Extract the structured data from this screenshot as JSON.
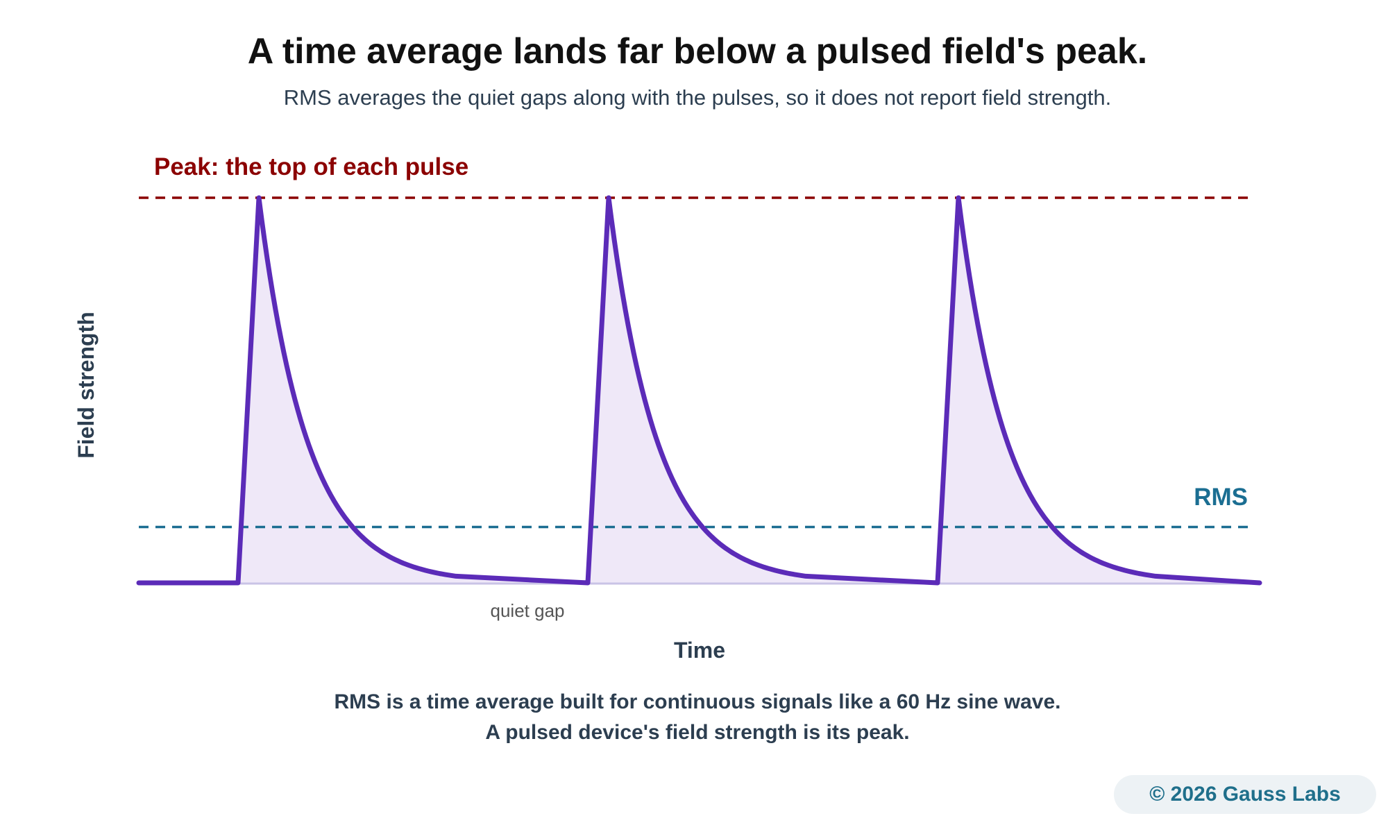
{
  "title": "A time average lands far below a pulsed field's peak.",
  "subtitle": "RMS averages the quiet gaps along with the pulses, so it does not report field strength.",
  "chart_data": {
    "type": "line",
    "xlabel": "Time",
    "ylabel": "Field strength",
    "series": [
      {
        "name": "",
        "shape": "pulse train",
        "pulses": 3,
        "rise": "sharp",
        "decay": "exponential"
      }
    ],
    "reference_lines": [
      {
        "label": "Peak: the top of each pulse",
        "level": 1.0,
        "color": "#8b0000",
        "style": "dashed"
      },
      {
        "label": "RMS",
        "level": 0.145,
        "color": "#1b6e92",
        "style": "dashed"
      }
    ],
    "annotations": [
      {
        "text": "quiet gap"
      }
    ],
    "colors": {
      "signal": "#5b2bb8",
      "fill": "#efe8f8",
      "baseline": "#c9c3e6"
    },
    "grid": false
  },
  "footer": {
    "line1": "RMS is a time average built for continuous signals like a 60 Hz sine wave.",
    "line2": "A pulsed device's field strength is its peak."
  },
  "copyright": "© 2026 Gauss Labs"
}
